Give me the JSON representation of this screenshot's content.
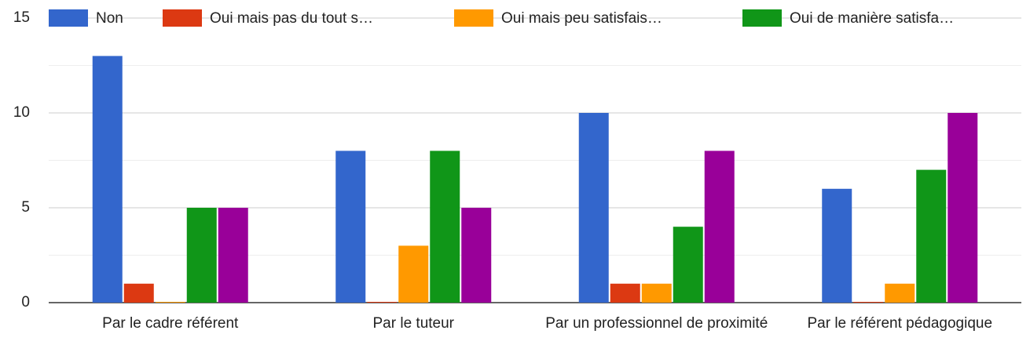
{
  "chart_data": {
    "type": "bar",
    "categories": [
      "Par le cadre référent",
      "Par le tuteur",
      "Par un professionnel de proximité",
      "Par le référent pédagogique"
    ],
    "series": [
      {
        "name": "Non",
        "color": "#3366cc",
        "values": [
          13,
          8,
          10,
          6
        ]
      },
      {
        "name": "Oui mais pas du tout s…",
        "color": "#dc3912",
        "values": [
          1,
          0,
          1,
          0
        ]
      },
      {
        "name": "Oui mais peu satisfais…",
        "color": "#ff9900",
        "values": [
          0,
          3,
          1,
          1
        ]
      },
      {
        "name": "Oui de manière satisfa…",
        "color": "#109618",
        "values": [
          5,
          8,
          4,
          7
        ]
      },
      {
        "color": "#990099",
        "values": [
          5,
          5,
          8,
          10
        ]
      }
    ],
    "ylim": [
      0,
      15
    ],
    "yticks": [
      0,
      5,
      10,
      15
    ],
    "grid": true,
    "legend": "top"
  }
}
